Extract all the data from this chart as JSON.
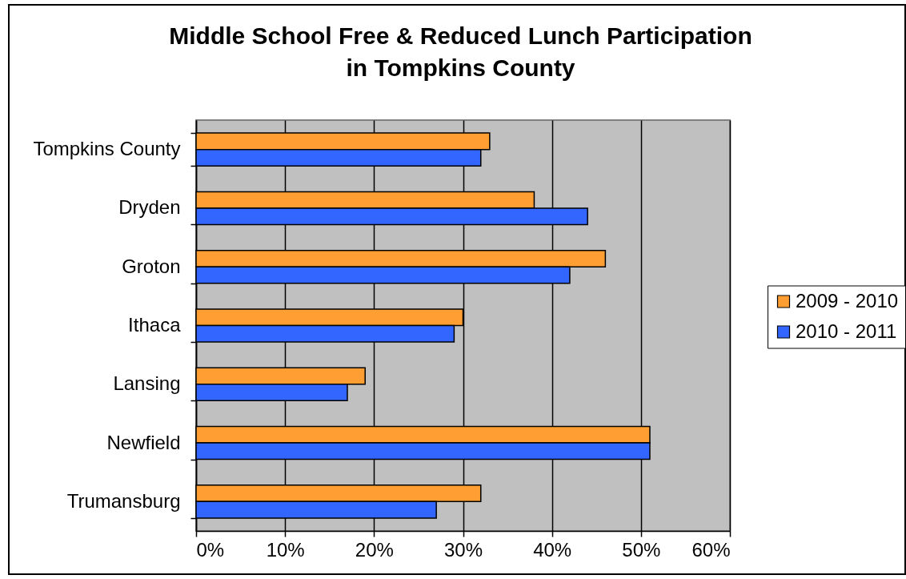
{
  "chart_data": {
    "type": "bar",
    "orientation": "horizontal",
    "title": "Middle School Free & Reduced Lunch Participation\nin Tompkins County",
    "categories": [
      "Tompkins County",
      "Dryden",
      "Groton",
      "Ithaca",
      "Lansing",
      "Newfield",
      "Trumansburg"
    ],
    "series": [
      {
        "name": "2009 - 2010",
        "color": "#ff9f33",
        "values": [
          33,
          38,
          46,
          30,
          19,
          51,
          32
        ]
      },
      {
        "name": "2010 - 2011",
        "color": "#3366ff",
        "values": [
          32,
          44,
          42,
          29,
          17,
          51,
          27
        ]
      }
    ],
    "xlim": [
      0,
      60
    ],
    "xticks": [
      {
        "value": 0,
        "label": "0%"
      },
      {
        "value": 10,
        "label": "10%"
      },
      {
        "value": 20,
        "label": "20%"
      },
      {
        "value": 30,
        "label": "30%"
      },
      {
        "value": 40,
        "label": "40%"
      },
      {
        "value": 50,
        "label": "50%"
      },
      {
        "value": 60,
        "label": "60%"
      }
    ],
    "grid": "x",
    "legend": "right"
  }
}
